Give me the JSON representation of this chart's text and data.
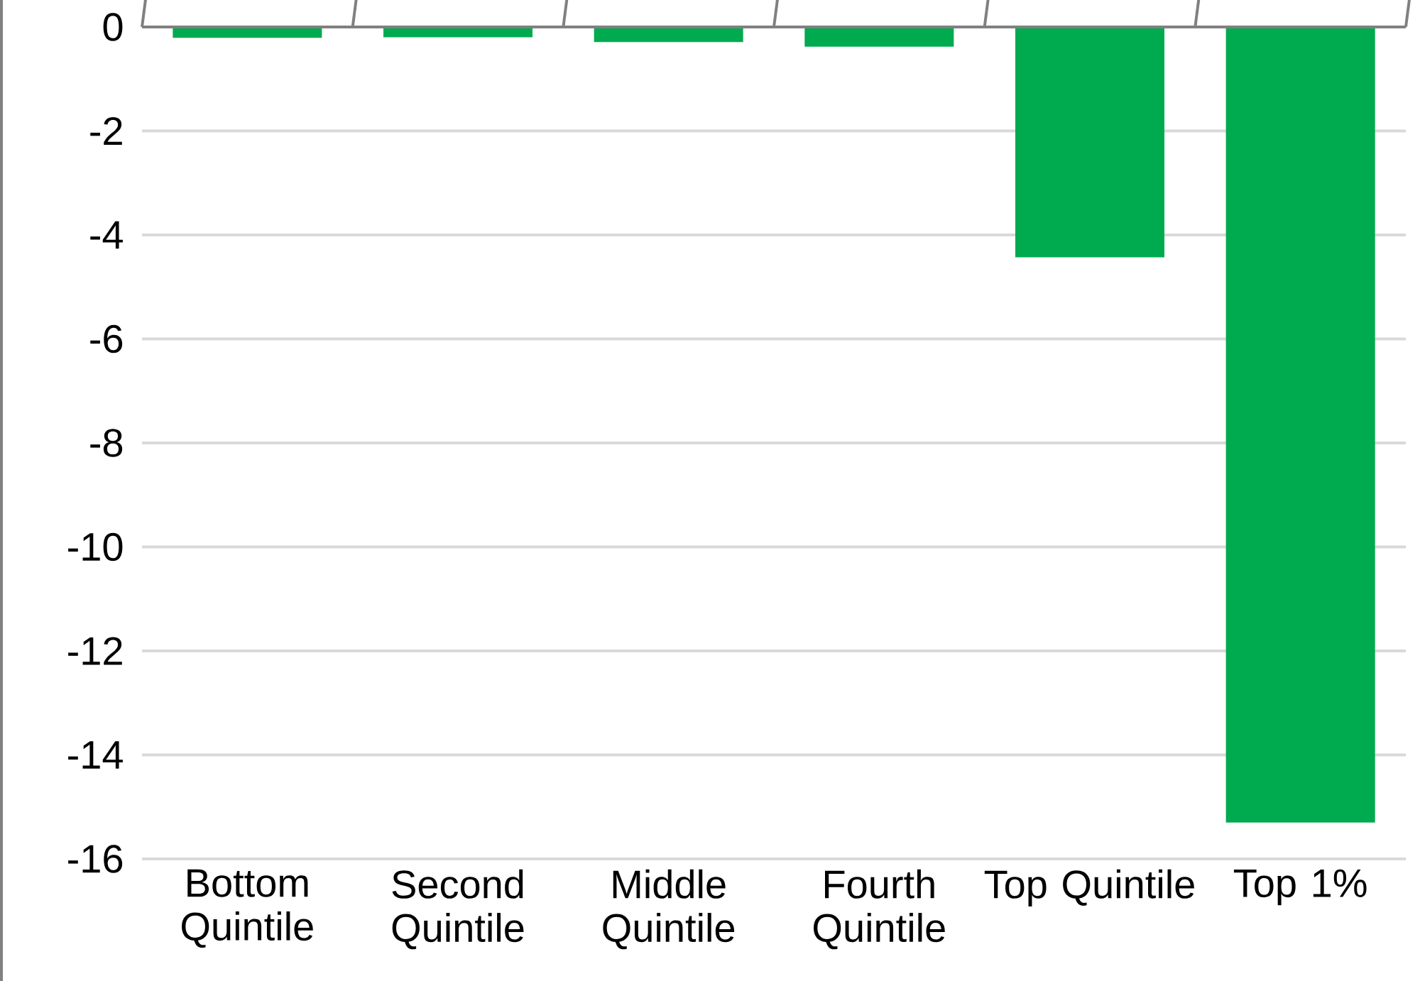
{
  "chart_data": {
    "type": "bar",
    "categories": [
      "Bottom Quintile",
      "Second Quintile",
      "Middle Quintile",
      "Fourth Quintile",
      "Top Quintile",
      "Top 1%"
    ],
    "values": [
      -0.21,
      -0.2,
      -0.29,
      -0.38,
      -4.43,
      -15.3
    ],
    "color": "#00aa4f",
    "ylim": [
      -16,
      0
    ],
    "yticks": [
      -16,
      -14,
      -12,
      -10,
      -8,
      -6,
      -4,
      -2,
      0
    ],
    "grid": "y"
  }
}
